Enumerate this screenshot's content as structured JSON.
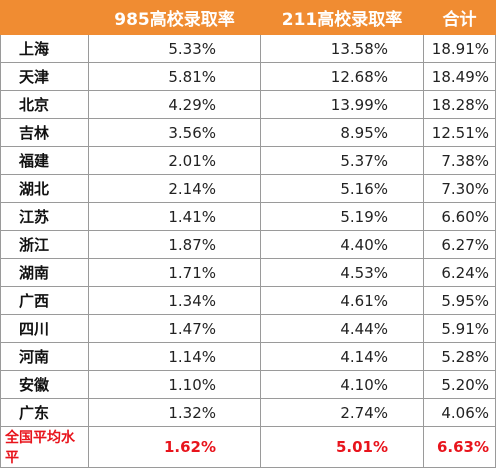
{
  "chart_data": {
    "type": "table",
    "columns": [
      "",
      "985高校录取率",
      "211高校录取率",
      "合计"
    ],
    "rows": [
      {
        "province": "上海",
        "rate985": "5.33%",
        "rate211": "13.58%",
        "total": "18.91%"
      },
      {
        "province": "天津",
        "rate985": "5.81%",
        "rate211": "12.68%",
        "total": "18.49%"
      },
      {
        "province": "北京",
        "rate985": "4.29%",
        "rate211": "13.99%",
        "total": "18.28%"
      },
      {
        "province": "吉林",
        "rate985": "3.56%",
        "rate211": "8.95%",
        "total": "12.51%"
      },
      {
        "province": "福建",
        "rate985": "2.01%",
        "rate211": "5.37%",
        "total": "7.38%"
      },
      {
        "province": "湖北",
        "rate985": "2.14%",
        "rate211": "5.16%",
        "total": "7.30%"
      },
      {
        "province": "江苏",
        "rate985": "1.41%",
        "rate211": "5.19%",
        "total": "6.60%"
      },
      {
        "province": "浙江",
        "rate985": "1.87%",
        "rate211": "4.40%",
        "total": "6.27%"
      },
      {
        "province": "湖南",
        "rate985": "1.71%",
        "rate211": "4.53%",
        "total": "6.24%"
      },
      {
        "province": "广西",
        "rate985": "1.34%",
        "rate211": "4.61%",
        "total": "5.95%"
      },
      {
        "province": "四川",
        "rate985": "1.47%",
        "rate211": "4.44%",
        "total": "5.91%"
      },
      {
        "province": "河南",
        "rate985": "1.14%",
        "rate211": "4.14%",
        "total": "5.28%"
      },
      {
        "province": "安徽",
        "rate985": "1.10%",
        "rate211": "4.10%",
        "total": "5.20%"
      },
      {
        "province": "广东",
        "rate985": "1.32%",
        "rate211": "2.74%",
        "total": "4.06%"
      }
    ],
    "average": {
      "province": "全国平均水平",
      "rate985": "1.62%",
      "rate211": "5.01%",
      "total": "6.63%"
    }
  },
  "colors": {
    "header_bg": "#f08c32",
    "header_text": "#ffffff",
    "average_text": "#e8141c",
    "border": "#9a9a9a"
  }
}
